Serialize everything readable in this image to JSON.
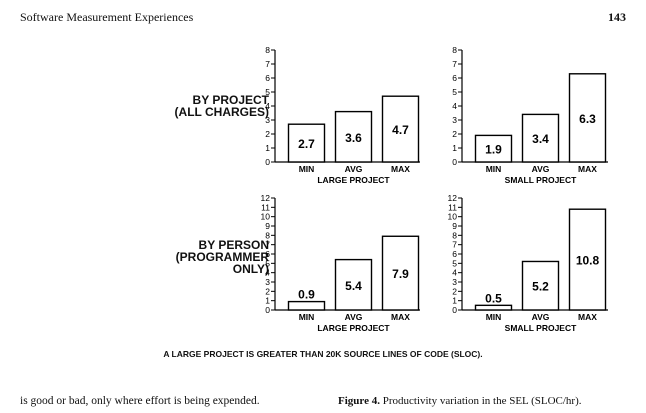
{
  "header": {
    "left": "Software Measurement Experiences",
    "right": "143"
  },
  "rows": [
    {
      "label_lines": [
        "BY PROJECT",
        "(ALL CHARGES)"
      ]
    },
    {
      "label_lines": [
        "BY PERSON",
        "(PROGRAMMER",
        "ONLY)"
      ]
    }
  ],
  "note": "A LARGE PROJECT IS GREATER THAN 20K SOURCE LINES OF CODE (SLOC).",
  "body_text": "is good or bad, only where effort is being expended.",
  "caption": {
    "label": "Figure 4.",
    "text": "Productivity variation in the SEL (SLOC/hr)."
  },
  "chart_data": [
    {
      "type": "bar",
      "title": "LARGE PROJECT",
      "categories": [
        "MIN",
        "AVG",
        "MAX"
      ],
      "values": [
        2.7,
        3.6,
        4.7
      ],
      "data_labels": [
        "2.7",
        "3.6",
        "4.7"
      ],
      "ylim": [
        0,
        8
      ],
      "yticks": [
        "0",
        "1",
        "2",
        "3",
        "4",
        "5",
        "6",
        "7",
        "8"
      ]
    },
    {
      "type": "bar",
      "title": "SMALL PROJECT",
      "categories": [
        "MIN",
        "AVG",
        "MAX"
      ],
      "values": [
        1.9,
        3.4,
        6.3
      ],
      "data_labels": [
        "1.9",
        "3.4",
        "6.3"
      ],
      "ylim": [
        0,
        8
      ],
      "yticks": [
        "0",
        "1",
        "2",
        "3",
        "4",
        "5",
        "6",
        "7",
        "8"
      ]
    },
    {
      "type": "bar",
      "title": "LARGE PROJECT",
      "categories": [
        "MIN",
        "AVG",
        "MAX"
      ],
      "values": [
        0.9,
        5.4,
        7.9
      ],
      "data_labels": [
        "0.9",
        "5.4",
        "7.9"
      ],
      "ylim": [
        0,
        12
      ],
      "yticks": [
        "0",
        "1",
        "2",
        "3",
        "4",
        "5",
        "6",
        "7",
        "8",
        "9",
        "10",
        "11",
        "12"
      ]
    },
    {
      "type": "bar",
      "title": "SMALL PROJECT",
      "categories": [
        "MIN",
        "AVG",
        "MAX"
      ],
      "values": [
        0.5,
        5.2,
        10.8
      ],
      "data_labels": [
        "0.5",
        "5.2",
        "10.8"
      ],
      "ylim": [
        0,
        12
      ],
      "yticks": [
        "0",
        "1",
        "2",
        "3",
        "4",
        "5",
        "6",
        "7",
        "8",
        "9",
        "10",
        "11",
        "12"
      ]
    }
  ]
}
